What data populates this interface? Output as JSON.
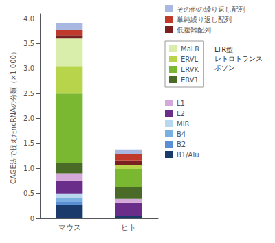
{
  "chart_data": {
    "type": "bar",
    "stacked": true,
    "ylabel": "CAGE法で捉えたncRNAの分類（×1,000）",
    "categories": [
      "マウス",
      "ヒト"
    ],
    "series": [
      {
        "name": "B1/Alu",
        "color": "#1a3a6b",
        "values": [
          0.27,
          0.04
        ]
      },
      {
        "name": "B2",
        "color": "#5b8fd4",
        "values": [
          0.07,
          0.0
        ]
      },
      {
        "name": "B4",
        "color": "#7ab0e0",
        "values": [
          0.08,
          0.0
        ]
      },
      {
        "name": "MIR",
        "color": "#b8d8f0",
        "values": [
          0.08,
          0.0
        ]
      },
      {
        "name": "L2",
        "color": "#6a2d8a",
        "values": [
          0.25,
          0.28
        ]
      },
      {
        "name": "L1",
        "color": "#d4a8d8",
        "values": [
          0.15,
          0.07
        ]
      },
      {
        "name": "ERV1",
        "color": "#4a6b28",
        "values": [
          0.2,
          0.23
        ]
      },
      {
        "name": "ERVK",
        "color": "#7ab832",
        "values": [
          1.4,
          0.37
        ]
      },
      {
        "name": "ERVL",
        "color": "#b8d44a",
        "values": [
          0.55,
          0.07
        ]
      },
      {
        "name": "MaLR",
        "color": "#d8eeaa",
        "values": [
          0.55,
          0.0
        ]
      },
      {
        "name": "低複雑配列",
        "color": "#7b2020",
        "values": [
          0.07,
          0.1
        ]
      },
      {
        "name": "単純繰り返し配列",
        "color": "#c0392b",
        "values": [
          0.1,
          0.12
        ]
      },
      {
        "name": "その他の繰り返し配列",
        "color": "#a8b8e0",
        "values": [
          0.15,
          0.1
        ]
      }
    ],
    "ylim": [
      0,
      4.1
    ],
    "yticks": [
      0,
      0.5,
      {
        "value": 1,
        "label": "1.0"
      },
      1.5,
      {
        "value": 2,
        "label": "2.0"
      },
      2.5,
      {
        "value": 3,
        "label": "3.0"
      },
      3.5,
      {
        "value": 4,
        "label": "4.0"
      }
    ],
    "grid": false,
    "legend": "right",
    "annotations": [
      "LTR型\nレトロトランス\nボゾン"
    ]
  }
}
